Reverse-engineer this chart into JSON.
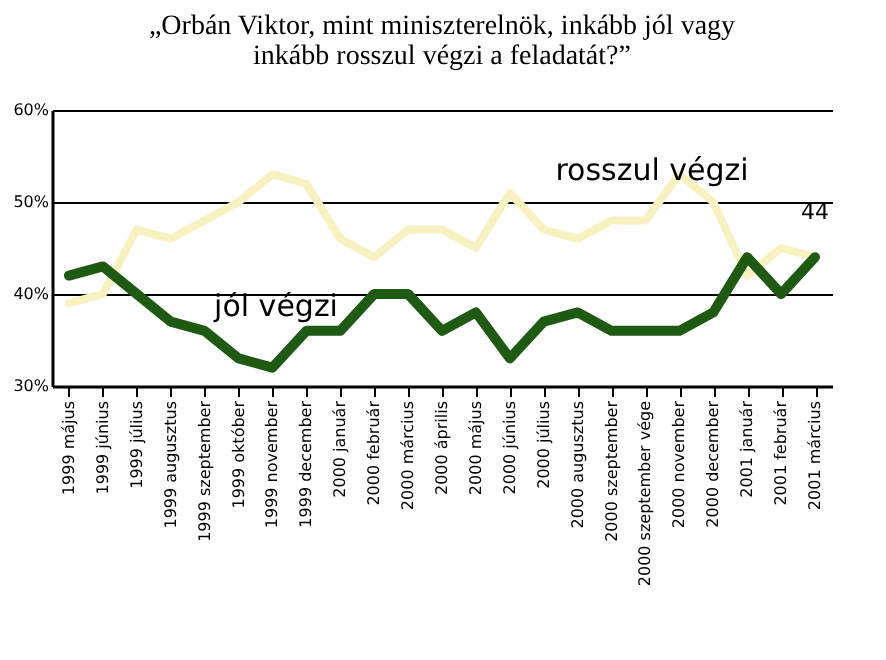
{
  "chart_data": {
    "type": "line",
    "title": "„Orbán Viktor, mint miniszterelnök, inkább jól vagy\ninkább rosszul végzi a feladatát?”",
    "categories": [
      "1999 május",
      "1999 június",
      "1999 július",
      "1999 augusztus",
      "1999 szeptember",
      "1999 október",
      "1999 november",
      "1999 december",
      "2000 január",
      "2000 február",
      "2000 március",
      "2000 április",
      "2000 május",
      "2000 június",
      "2000 július",
      "2000 augusztus",
      "2000 szeptember",
      "2000 szeptember vége",
      "2000 november",
      "2000 december",
      "2001 január",
      "2001 február",
      "2001 március"
    ],
    "series": [
      {
        "name": "rosszul végzi",
        "color": "#f8f2c0",
        "values": [
          39,
          40,
          47,
          46,
          48,
          50,
          53,
          52,
          46,
          44,
          47,
          47,
          45,
          51,
          47,
          46,
          48,
          48,
          53,
          50,
          42,
          45,
          44
        ]
      },
      {
        "name": "jól végzi",
        "color": "#1e5a12",
        "values": [
          42,
          43,
          40,
          37,
          36,
          33,
          32,
          36,
          36,
          40,
          40,
          36,
          38,
          33,
          37,
          38,
          36,
          36,
          36,
          38,
          44,
          40,
          44
        ]
      }
    ],
    "ylim": [
      30,
      60
    ],
    "yticks": [
      {
        "value": 30,
        "label": "30%"
      },
      {
        "value": 40,
        "label": "40%"
      },
      {
        "value": 50,
        "label": "50%"
      },
      {
        "value": 60,
        "label": "60%"
      }
    ],
    "grid": "y",
    "legend": false,
    "marker": "none",
    "line_style": "solid",
    "annotations": [
      {
        "text": "44",
        "x": "2001 március",
        "y": 44
      }
    ]
  }
}
